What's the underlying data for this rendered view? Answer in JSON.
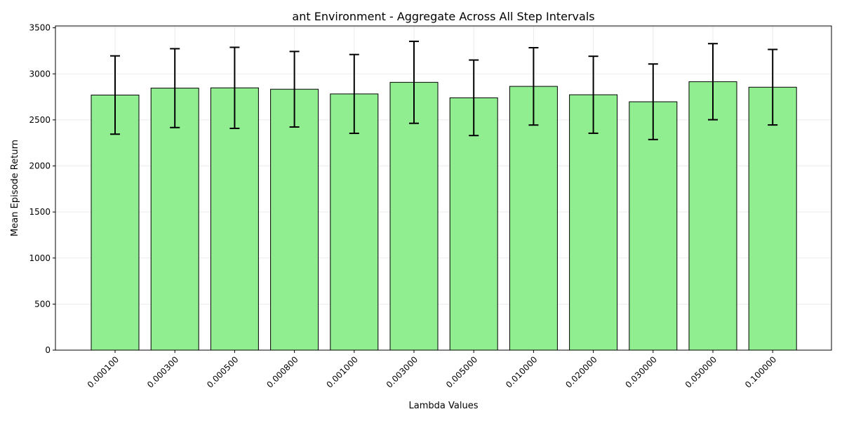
{
  "chart_data": {
    "type": "bar",
    "title": "ant Environment - Aggregate Across All Step Intervals",
    "xlabel": "Lambda Values",
    "ylabel": "Mean Episode Return",
    "categories": [
      "0.000100",
      "0.000300",
      "0.000500",
      "0.000800",
      "0.001000",
      "0.003000",
      "0.005000",
      "0.010000",
      "0.020000",
      "0.030000",
      "0.050000",
      "0.100000"
    ],
    "values": [
      2770,
      2845,
      2848,
      2833,
      2782,
      2908,
      2740,
      2864,
      2773,
      2697,
      2915,
      2855
    ],
    "errors": [
      425,
      428,
      440,
      410,
      428,
      445,
      410,
      420,
      418,
      410,
      413,
      410
    ],
    "ylim": [
      0,
      3520
    ],
    "yticks": [
      0,
      500,
      1000,
      1500,
      2000,
      2500,
      3000,
      3500
    ],
    "grid": true,
    "bar_color": "#90EE90",
    "edge_color": "#000000"
  }
}
